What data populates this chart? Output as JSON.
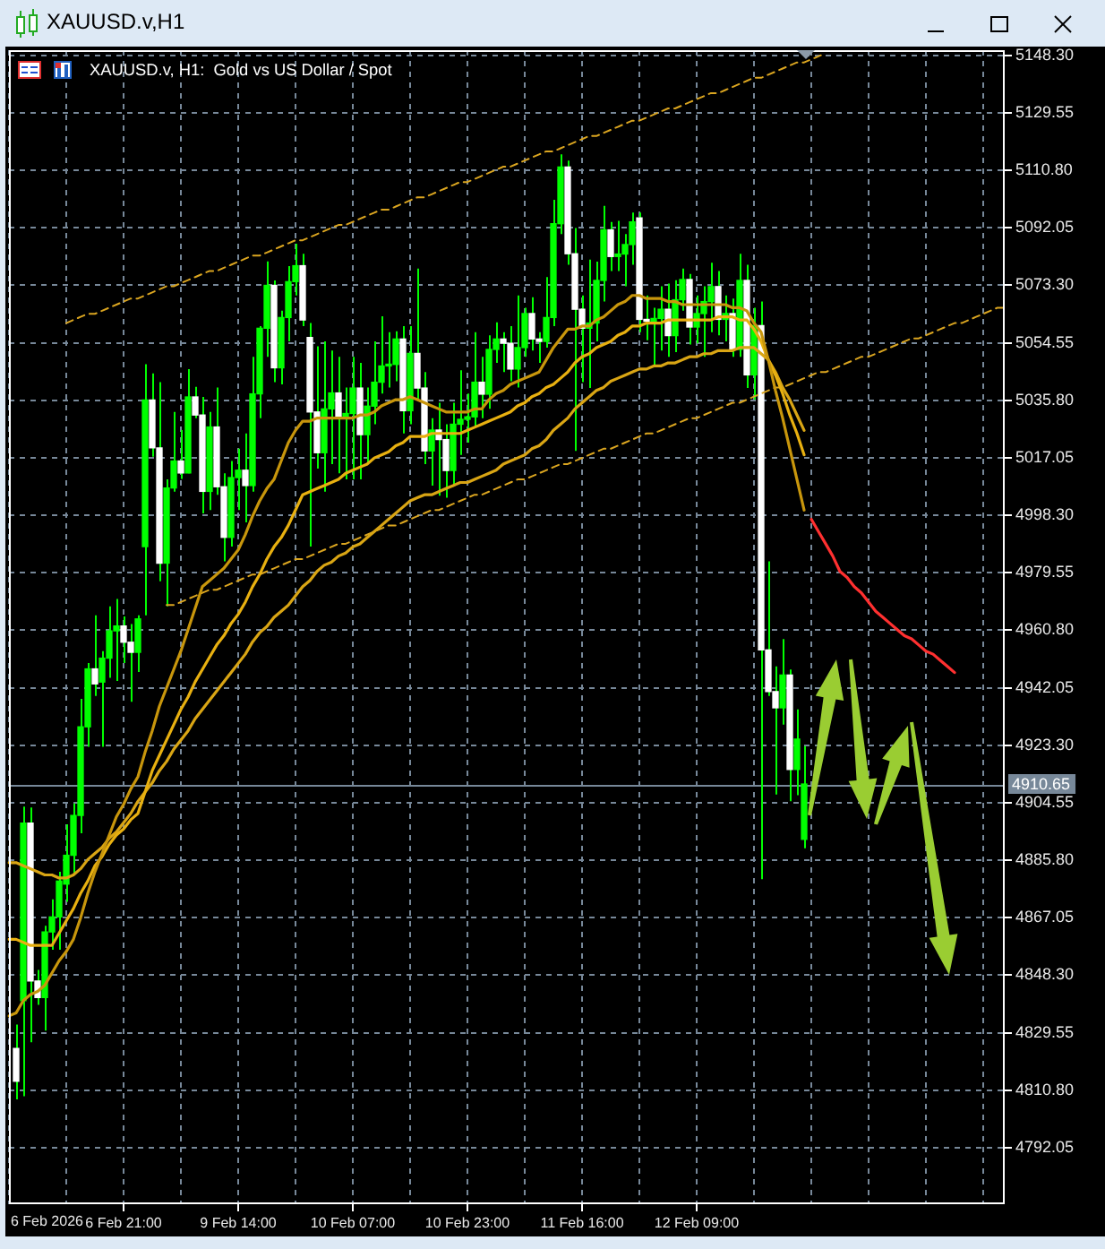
{
  "chart_data": {
    "type": "candlestick",
    "title": "XAUUSD.v,H1",
    "subtitle": "XAUUSD.v, H1:  Gold vs US Dollar / Spot",
    "annotations": [
      "6 Feb 2026"
    ],
    "categories": [
      null,
      null,
      null,
      null,
      null,
      null,
      null,
      null,
      null,
      null,
      null,
      null,
      null,
      null,
      null,
      null,
      "6 Feb 21:00",
      null,
      null,
      null,
      null,
      null,
      null,
      null,
      null,
      null,
      null,
      null,
      null,
      null,
      null,
      null,
      "9 Feb 14:00",
      null,
      null,
      null,
      null,
      null,
      null,
      null,
      null,
      null,
      null,
      null,
      null,
      null,
      null,
      null,
      "10 Feb 07:00",
      null,
      null,
      null,
      null,
      null,
      null,
      null,
      null,
      null,
      null,
      null,
      null,
      null,
      null,
      null,
      "10 Feb 23:00",
      null,
      null,
      null,
      null,
      null,
      null,
      null,
      null,
      null,
      null,
      null,
      null,
      null,
      null,
      null,
      "11 Feb 16:00",
      null,
      null,
      null,
      null,
      null,
      null,
      null,
      null,
      null,
      null,
      null,
      null,
      null,
      null,
      null,
      "12 Feb 09:00",
      null,
      null,
      null,
      null,
      null,
      null,
      null,
      null,
      null,
      null,
      null,
      null,
      null,
      null,
      null,
      null,
      null,
      null,
      null,
      null,
      null,
      null,
      null,
      null,
      null,
      null,
      null,
      null,
      null,
      null,
      null,
      null,
      null,
      null,
      null,
      null,
      null,
      null,
      null,
      null,
      null,
      null,
      null
    ],
    "ohlc": [
      null,
      [
        4824.4,
        4832.2,
        4807.8,
        4813.7
      ],
      [
        4840.0,
        4903.3,
        4808.8,
        4897.9
      ],
      [
        4897.9,
        4903.0,
        4826.4,
        4846.4
      ],
      [
        4846.4,
        4850.0,
        4838.6,
        4841.0
      ],
      [
        4841.0,
        4864.4,
        4830.2,
        4862.4
      ],
      [
        4862.4,
        4873.0,
        4856.6,
        4867.3
      ],
      [
        4867.3,
        4882.0,
        4856.6,
        4879.0
      ],
      [
        4878.0,
        4897.5,
        4872.2,
        4887.4
      ],
      [
        4887.4,
        4904.3,
        4880.9,
        4900.4
      ],
      [
        4900.4,
        4938.4,
        4894.6,
        4929.3
      ],
      [
        4929.3,
        4950.1,
        4922.8,
        4948.2
      ],
      [
        4948.2,
        4965.7,
        4939.4,
        4943.3
      ],
      [
        4943.9,
        4954.0,
        4922.8,
        4951.7
      ],
      [
        4951.7,
        4968.6,
        4945.3,
        4960.6
      ],
      [
        4960.6,
        4971.0,
        4944.3,
        4962.2
      ],
      [
        4962.2,
        4965.3,
        4950.1,
        4956.9
      ],
      [
        4956.9,
        4962.8,
        4937.5,
        4953.6
      ],
      [
        4953.6,
        4965.7,
        4947.2,
        4964.5
      ],
      [
        4988.1,
        5047.6,
        4965.7,
        5035.9
      ],
      [
        5035.9,
        5044.6,
        5017.4,
        5020.3
      ],
      [
        5020.3,
        5041.7,
        4976.8,
        4982.7
      ],
      [
        4982.7,
        5010.0,
        4968.6,
        5007.2
      ],
      [
        5007.2,
        5032.0,
        5006.0,
        5016.0
      ],
      [
        5016.0,
        5026.1,
        5010.2,
        5012.1
      ],
      [
        5012.1,
        5046.0,
        5012.0,
        5036.9
      ],
      [
        5036.9,
        5040.2,
        5030.0,
        5031.0
      ],
      [
        5031.0,
        5036.9,
        4998.9,
        5006.1
      ],
      [
        5006.1,
        5032.0,
        5000.0,
        5027.1
      ],
      [
        5027.1,
        5040.0,
        5005.0,
        5007.6
      ],
      [
        5007.6,
        5012.0,
        4983.3,
        4991.1
      ],
      [
        4991.1,
        5016.0,
        4988.1,
        5010.6
      ],
      [
        5010.6,
        5020.0,
        5000.0,
        5013.0
      ],
      [
        5013.0,
        5025.0,
        4996.0,
        5008.0
      ],
      [
        5008.0,
        5050.0,
        5006.0,
        5037.9
      ],
      [
        5037.9,
        5060.0,
        5030.0,
        5059.3
      ],
      [
        5059.3,
        5081.1,
        5050.0,
        5073.3
      ],
      [
        5073.3,
        5074.9,
        5041.7,
        5046.4
      ],
      [
        5046.4,
        5065.0,
        5041.0,
        5062.8
      ],
      [
        5062.8,
        5079.6,
        5055.0,
        5074.5
      ],
      [
        5074.5,
        5086.9,
        5070.0,
        5079.7
      ],
      [
        5079.7,
        5083.6,
        5060.0,
        5062.0
      ],
      [
        5056.3,
        5061.0,
        4988.1,
        5032.0
      ],
      [
        5032.0,
        5053.4,
        5013.5,
        5018.7
      ],
      [
        5018.7,
        5055.0,
        5006.0,
        5033.0
      ],
      [
        5033.0,
        5052.0,
        5015.0,
        5038.2
      ],
      [
        5038.2,
        5050.0,
        5012.0,
        5030.0
      ],
      [
        5030.0,
        5040.0,
        5010.0,
        5031.5
      ],
      [
        5031.5,
        5050.0,
        5010.0,
        5039.8
      ],
      [
        5039.8,
        5048.0,
        5010.0,
        5024.6
      ],
      [
        5024.6,
        5040.0,
        5015.0,
        5033.9
      ],
      [
        5033.9,
        5055.0,
        5028.0,
        5041.7
      ],
      [
        5041.7,
        5063.2,
        5038.0,
        5047.0
      ],
      [
        5047.0,
        5058.0,
        5040.0,
        5047.5
      ],
      [
        5047.5,
        5058.3,
        5042.0,
        5055.8
      ],
      [
        5055.8,
        5060.0,
        5025.0,
        5032.4
      ],
      [
        5032.4,
        5060.0,
        5028.0,
        5051.1
      ],
      [
        5051.1,
        5078.8,
        5036.0,
        5039.8
      ],
      [
        5039.8,
        5045.0,
        5015.0,
        5019.3
      ],
      [
        5019.3,
        5030.0,
        5008.0,
        5026.1
      ],
      [
        5026.1,
        5035.0,
        5004.7,
        5023.0
      ],
      [
        5023.0,
        5028.0,
        5004.0,
        5012.9
      ],
      [
        5012.9,
        5035.0,
        5008.0,
        5028.0
      ],
      [
        5028.0,
        5045.6,
        5018.0,
        5029.6
      ],
      [
        5029.6,
        5038.0,
        5022.0,
        5030.4
      ],
      [
        5030.4,
        5058.0,
        5027.0,
        5041.7
      ],
      [
        5041.7,
        5050.0,
        5030.0,
        5037.8
      ],
      [
        5037.8,
        5057.0,
        5033.0,
        5052.4
      ],
      [
        5052.4,
        5061.2,
        5048.0,
        5055.8
      ],
      [
        5055.8,
        5058.0,
        5045.0,
        5054.4
      ],
      [
        5054.4,
        5060.0,
        5042.0,
        5046.0
      ],
      [
        5046.0,
        5070.0,
        5040.0,
        5053.0
      ],
      [
        5053.0,
        5066.0,
        5050.0,
        5064.1
      ],
      [
        5064.1,
        5069.4,
        5052.0,
        5055.8
      ],
      [
        5055.8,
        5058.0,
        5048.0,
        5055.0
      ],
      [
        5055.0,
        5076.0,
        5053.0,
        5062.8
      ],
      [
        5062.8,
        5101.2,
        5060.0,
        5093.4
      ],
      [
        5093.4,
        5116.0,
        5090.0,
        5111.9
      ],
      [
        5111.9,
        5114.0,
        5080.0,
        5083.6
      ],
      [
        5083.6,
        5092.0,
        5019.3,
        5065.5
      ],
      [
        5065.5,
        5070.0,
        5041.7,
        5059.3
      ],
      [
        5059.3,
        5081.7,
        5039.8,
        5061.0
      ],
      [
        5061.0,
        5081.0,
        5055.0,
        5074.9
      ],
      [
        5074.9,
        5099.2,
        5068.0,
        5091.4
      ],
      [
        5091.4,
        5094.0,
        5078.0,
        5082.7
      ],
      [
        5082.7,
        5094.3,
        5078.0,
        5083.5
      ],
      [
        5083.5,
        5090.0,
        5073.0,
        5086.6
      ],
      [
        5086.6,
        5097.0,
        5080.0,
        5094.0
      ],
      [
        5095.3,
        5097.0,
        5058.0,
        5062.2
      ],
      [
        5062.2,
        5070.0,
        5055.4,
        5061.6
      ],
      [
        5061.6,
        5066.0,
        5046.6,
        5062.5
      ],
      [
        5062.5,
        5073.0,
        5052.0,
        5065.5
      ],
      [
        5065.5,
        5073.9,
        5050.0,
        5056.9
      ],
      [
        5056.9,
        5075.0,
        5051.5,
        5068.6
      ],
      [
        5068.6,
        5078.8,
        5065.0,
        5075.2
      ],
      [
        5075.2,
        5077.0,
        5054.0,
        5059.7
      ],
      [
        5059.7,
        5070.0,
        5054.4,
        5064.1
      ],
      [
        5064.1,
        5073.0,
        5050.0,
        5068.0
      ],
      [
        5068.0,
        5080.7,
        5058.0,
        5072.9
      ],
      [
        5072.9,
        5078.0,
        5057.0,
        5062.2
      ],
      [
        5062.2,
        5070.0,
        5055.0,
        5064.1
      ],
      [
        5064.1,
        5069.0,
        5050.0,
        5052.4
      ],
      [
        5052.4,
        5083.6,
        5050.0,
        5074.9
      ],
      [
        5074.9,
        5080.0,
        5039.8,
        5044.1
      ],
      [
        5044.1,
        5066.0,
        5036.0,
        5060.2
      ],
      [
        5060.2,
        5068.0,
        4879.6,
        4954.4
      ],
      [
        4954.4,
        4983.3,
        4939.4,
        4940.8
      ],
      [
        4940.8,
        4949.0,
        4907.2,
        4935.5
      ],
      [
        4935.5,
        4957.9,
        4930.0,
        4946.2
      ],
      [
        4946.2,
        4948.0,
        4905.0,
        4915.4
      ],
      [
        4915.4,
        4935.0,
        4907.0,
        4925.3
      ],
      [
        4892.6,
        4923.0,
        4889.7,
        4910.65
      ],
      null,
      null,
      null,
      null,
      null,
      null,
      null,
      null,
      null,
      null,
      null,
      null,
      null,
      null,
      null,
      null,
      null,
      null,
      null,
      null,
      null,
      null,
      null,
      null,
      null,
      null,
      null,
      null
    ],
    "color": "#00ff00",
    "colors": [
      null,
      "#ffffff",
      "#00ff00",
      "#ffffff",
      "#ffffff",
      "#00ff00",
      "#00ff00",
      "#00ff00",
      "#00ff00",
      "#00ff00",
      "#00ff00",
      "#00ff00",
      "#ffffff",
      "#00ff00",
      "#00ff00",
      "#00ff00",
      "#ffffff",
      "#ffffff",
      "#00ff00",
      "#00ff00",
      "#ffffff",
      "#ffffff",
      "#00ff00",
      "#00ff00",
      "#ffffff",
      "#00ff00",
      "#ffffff",
      "#ffffff",
      "#00ff00",
      "#ffffff",
      "#ffffff",
      "#00ff00",
      "#00ff00",
      "#ffffff",
      "#00ff00",
      "#00ff00",
      "#00ff00",
      "#ffffff",
      "#00ff00",
      "#00ff00",
      "#00ff00",
      "#ffffff",
      "#ffffff",
      "#ffffff",
      "#00ff00",
      "#00ff00",
      "#ffffff",
      "#00ff00",
      "#00ff00",
      "#ffffff",
      "#00ff00",
      "#00ff00",
      "#00ff00",
      "#00ff00",
      "#00ff00",
      "#ffffff",
      "#00ff00",
      "#ffffff",
      "#ffffff",
      "#00ff00",
      "#ffffff",
      "#ffffff",
      "#00ff00",
      "#00ff00",
      "#00ff00",
      "#00ff00",
      "#ffffff",
      "#00ff00",
      "#00ff00",
      "#ffffff",
      "#ffffff",
      "#00ff00",
      "#00ff00",
      "#ffffff",
      "#ffffff",
      "#00ff00",
      "#00ff00",
      "#00ff00",
      "#ffffff",
      "#ffffff",
      "#ffffff",
      "#00ff00",
      "#00ff00",
      "#00ff00",
      "#ffffff",
      "#00ff00",
      "#00ff00",
      "#00ff00",
      "#ffffff",
      "#ffffff",
      "#00ff00",
      "#00ff00",
      "#ffffff",
      "#00ff00",
      "#00ff00",
      "#ffffff",
      "#00ff00",
      "#00ff00",
      "#00ff00",
      "#ffffff",
      "#00ff00",
      "#ffffff",
      "#00ff00",
      "#ffffff",
      "#00ff00",
      "#ffffff",
      "#ffffff",
      "#ffffff",
      "#00ff00",
      "#ffffff",
      "#00ff00",
      "#00ff00",
      null,
      null,
      null,
      null,
      null,
      null,
      null,
      null,
      null,
      null,
      null,
      null,
      null,
      null,
      null,
      null,
      null,
      null,
      null,
      null,
      null,
      null,
      null,
      null,
      null,
      null,
      null,
      null
    ],
    "series": [
      {
        "type": "line",
        "color": "#c8960c",
        "values": [
          4835,
          4836,
          4840,
          4842,
          4843,
          4845,
          4849,
          4853,
          4856,
          4860,
          4867,
          4875,
          4882,
          4888,
          4894,
          4900,
          4904,
          4909,
          4913,
          4921,
          4928,
          4936,
          4942,
          4948,
          4954,
          4961,
          4968,
          4975,
          4977,
          4979,
          4981,
          4984,
          4987,
          4992,
          4998,
          5003,
          5007,
          5010,
          5016,
          5022,
          5026,
          5029,
          5029,
          5030,
          5030,
          5030,
          5030,
          5030,
          5030,
          5031,
          5031,
          5032,
          5034,
          5035,
          5036,
          5036,
          5037,
          5036,
          5035,
          5034,
          5033,
          5032,
          5032,
          5032,
          5032,
          5033,
          5033,
          5036,
          5038,
          5039,
          5041,
          5042,
          5043,
          5044,
          5045,
          5049,
          5053,
          5056,
          5059,
          5059,
          5060,
          5060,
          5062,
          5063,
          5065,
          5067,
          5068,
          5070,
          5070,
          5069,
          5069,
          5069,
          5068,
          5068,
          5067,
          5067,
          5067,
          5067,
          5067,
          5067,
          5067,
          5066,
          5066,
          5065,
          5061,
          5058,
          5049,
          5039,
          5030,
          5020,
          5010,
          5000,
          null,
          null,
          null,
          null,
          null,
          null,
          null,
          null,
          null,
          null,
          null,
          null,
          null,
          null,
          null,
          null,
          null,
          null,
          null,
          null,
          null,
          null,
          null,
          null,
          null,
          null,
          null,
          null
        ]
      },
      {
        "type": "line",
        "color": "#e8b010",
        "values": [
          4860,
          4860,
          4859,
          4858,
          4858,
          4858,
          4858,
          4862,
          4866,
          4870,
          4875,
          4879,
          4884,
          4887,
          4891,
          4894,
          4896,
          4899,
          4901,
          4908,
          4915,
          4920,
          4925,
          4930,
          4935,
          4939,
          4944,
          4948,
          4952,
          4956,
          4959,
          4963,
          4966,
          4970,
          4975,
          4979,
          4984,
          4988,
          4991,
          4995,
          5000,
          5005,
          5006,
          5007,
          5008,
          5009,
          5010,
          5012,
          5013,
          5014,
          5015,
          5017,
          5018,
          5019,
          5021,
          5022,
          5024,
          5024,
          5024,
          5025,
          5025,
          5025,
          5025,
          5025,
          5026,
          5027,
          5028,
          5029,
          5030,
          5031,
          5032,
          5034,
          5035,
          5037,
          5038,
          5040,
          5041,
          5043,
          5045,
          5048,
          5050,
          5051,
          5053,
          5054,
          5055,
          5057,
          5058,
          5060,
          5060,
          5061,
          5061,
          5061,
          5062,
          5062,
          5062,
          5062,
          5062,
          5062,
          5062,
          5063,
          5063,
          5063,
          5062,
          5062,
          5059,
          5055,
          5049,
          5044,
          5038,
          5031,
          5025,
          5018,
          null,
          null,
          null,
          null,
          null,
          null,
          null,
          null,
          null,
          null,
          null,
          null,
          null,
          null,
          null,
          null,
          null,
          null,
          null,
          null,
          null,
          null,
          null,
          null,
          null,
          null,
          null,
          null
        ]
      },
      {
        "type": "line",
        "color": "#d9a514",
        "values": [
          4885,
          4885,
          4884,
          4883,
          4882,
          4881,
          4881,
          4880,
          4880,
          4881,
          4883,
          4886,
          4888,
          4890,
          4893,
          4895,
          4898,
          4901,
          4905,
          4908,
          4911,
          4915,
          4918,
          4922,
          4925,
          4928,
          4932,
          4935,
          4938,
          4941,
          4944,
          4947,
          4950,
          4953,
          4957,
          4960,
          4962,
          4965,
          4967,
          4969,
          4972,
          4975,
          4977,
          4980,
          4982,
          4983,
          4985,
          4986,
          4988,
          4989,
          4991,
          4993,
          4995,
          4997,
          4999,
          5001,
          5003,
          5004,
          5005,
          5005,
          5006,
          5007,
          5008,
          5009,
          5009,
          5010,
          5011,
          5012,
          5013,
          5015,
          5016,
          5017,
          5018,
          5020,
          5021,
          5023,
          5026,
          5028,
          5030,
          5033,
          5035,
          5037,
          5039,
          5040,
          5042,
          5043,
          5044,
          5045,
          5046,
          5046,
          5047,
          5047,
          5048,
          5048,
          5049,
          5050,
          5050,
          5051,
          5051,
          5052,
          5052,
          5052,
          5053,
          5053,
          5053,
          5051,
          5049,
          5045,
          5040,
          5036,
          5031,
          5026,
          null,
          null,
          null,
          null,
          null,
          null,
          null,
          null,
          null,
          null,
          null,
          null,
          null,
          null,
          null,
          null,
          null,
          null,
          null,
          null,
          null,
          null,
          null,
          null,
          null,
          null,
          null,
          null
        ]
      },
      {
        "type": "line",
        "color": "#daa520",
        "line_style": "dashed",
        "values": [
          null,
          null,
          null,
          null,
          null,
          null,
          null,
          null,
          5061,
          5062,
          5063,
          5064,
          5064,
          5065,
          5066,
          5067,
          5068,
          5069,
          5069,
          5070,
          5071,
          5072,
          5073,
          5073,
          5074,
          5075,
          5076,
          5077,
          5078,
          5078,
          5079,
          5080,
          5081,
          5082,
          5083,
          5083,
          5084,
          5085,
          5086,
          5087,
          5088,
          5088,
          5089,
          5090,
          5091,
          5092,
          5093,
          5093,
          5094,
          5095,
          5096,
          5097,
          5098,
          5098,
          5099,
          5100,
          5101,
          5102,
          5102,
          5103,
          5104,
          5105,
          5106,
          5107,
          5107,
          5108,
          5109,
          5110,
          5111,
          5112,
          5112,
          5113,
          5114,
          5115,
          5116,
          5117,
          5117,
          5118,
          5119,
          5120,
          5121,
          5122,
          5122,
          5123,
          5124,
          5125,
          5126,
          5127,
          5127,
          5128,
          5129,
          5130,
          5131,
          5131,
          5132,
          5133,
          5134,
          5135,
          5136,
          5136,
          5137,
          5138,
          5139,
          5140,
          5141,
          5141,
          5142,
          5143,
          5144,
          5145,
          5146,
          5146,
          5147,
          5148,
          5149,
          null,
          null,
          null,
          null,
          null,
          null,
          null,
          null,
          null,
          null,
          null,
          null,
          null,
          null,
          null,
          null,
          null,
          null,
          null,
          null,
          null,
          null,
          null,
          null,
          null
        ]
      },
      {
        "type": "line",
        "color": "#daa520",
        "line_style": "dashed",
        "values": [
          null,
          null,
          null,
          null,
          null,
          null,
          null,
          null,
          null,
          null,
          null,
          null,
          null,
          null,
          null,
          null,
          null,
          null,
          null,
          null,
          null,
          null,
          4969,
          4969,
          4970,
          4971,
          4972,
          4973,
          4974,
          4974,
          4975,
          4976,
          4977,
          4978,
          4979,
          4979,
          4980,
          4981,
          4982,
          4983,
          4984,
          4984,
          4985,
          4986,
          4987,
          4988,
          4989,
          4989,
          4990,
          4991,
          4992,
          4993,
          4994,
          4995,
          4995,
          4996,
          4997,
          4998,
          4999,
          5000,
          5000,
          5001,
          5002,
          5003,
          5004,
          5005,
          5005,
          5006,
          5007,
          5008,
          5009,
          5010,
          5010,
          5011,
          5012,
          5013,
          5014,
          5015,
          5015,
          5016,
          5017,
          5018,
          5019,
          5020,
          5020,
          5021,
          5022,
          5023,
          5024,
          5025,
          5025,
          5026,
          5027,
          5028,
          5029,
          5030,
          5030,
          5031,
          5032,
          5033,
          5034,
          5035,
          5035,
          5036,
          5037,
          5038,
          5039,
          5040,
          5040,
          5041,
          5042,
          5043,
          5044,
          5045,
          5045,
          5046,
          5047,
          5048,
          5049,
          5050,
          5050,
          5051,
          5052,
          5053,
          5054,
          5055,
          5056,
          5056,
          5057,
          5058,
          5059,
          5060,
          5061,
          5061,
          5062,
          5063,
          5064,
          5065,
          5066,
          5066
        ]
      },
      {
        "type": "line",
        "color": "#ff3030",
        "values": [
          null,
          null,
          null,
          null,
          null,
          null,
          null,
          null,
          null,
          null,
          null,
          null,
          null,
          null,
          null,
          null,
          null,
          null,
          null,
          null,
          null,
          null,
          null,
          null,
          null,
          null,
          null,
          null,
          null,
          null,
          null,
          null,
          null,
          null,
          null,
          null,
          null,
          null,
          null,
          null,
          null,
          null,
          null,
          null,
          null,
          null,
          null,
          null,
          null,
          null,
          null,
          null,
          null,
          null,
          null,
          null,
          null,
          null,
          null,
          null,
          null,
          null,
          null,
          null,
          null,
          null,
          null,
          null,
          null,
          null,
          null,
          null,
          null,
          null,
          null,
          null,
          null,
          null,
          null,
          null,
          null,
          null,
          null,
          null,
          null,
          null,
          null,
          null,
          null,
          null,
          null,
          null,
          null,
          null,
          null,
          null,
          null,
          null,
          null,
          null,
          null,
          null,
          null,
          null,
          null,
          null,
          null,
          null,
          null,
          null,
          null,
          null,
          4997,
          4993,
          4989,
          4985,
          4980,
          4978,
          4975,
          4973,
          4970,
          4967,
          4965,
          4963,
          4961,
          4959,
          4958,
          4956,
          4954,
          4953,
          4951,
          4949,
          4947,
          null,
          null,
          null,
          null,
          null,
          null,
          null
        ]
      }
    ],
    "ylim": [
      4773.6,
      5150.0
    ],
    "yticks": [
      {
        "value": 4792.05,
        "label": "4792.05"
      },
      {
        "value": 4810.8,
        "label": "4810.80"
      },
      {
        "value": 4829.55,
        "label": "4829.55"
      },
      {
        "value": 4848.3,
        "label": "4848.30"
      },
      {
        "value": 4867.05,
        "label": "4867.05"
      },
      {
        "value": 4885.8,
        "label": "4885.80"
      },
      {
        "value": 4904.55,
        "label": "4904.55"
      },
      {
        "value": 4923.3,
        "label": "4923.30"
      },
      {
        "value": 4942.05,
        "label": "4942.05"
      },
      {
        "value": 4960.8,
        "label": "4960.80"
      },
      {
        "value": 4979.55,
        "label": "4979.55"
      },
      {
        "value": 4998.3,
        "label": "4998.30"
      },
      {
        "value": 5017.05,
        "label": "5017.05"
      },
      {
        "value": 5035.8,
        "label": "5035.80"
      },
      {
        "value": 5054.55,
        "label": "5054.55"
      },
      {
        "value": 5073.3,
        "label": "5073.30"
      },
      {
        "value": 5092.05,
        "label": "5092.05"
      },
      {
        "value": 5110.8,
        "label": "5110.80"
      },
      {
        "value": 5129.55,
        "label": "5129.55"
      },
      {
        "value": 5148.3,
        "label": "5148.30"
      }
    ],
    "grid": true,
    "ref_lines": [
      {
        "axis": "y",
        "value": 4910.65,
        "label": "4910.65",
        "color": "#778899"
      }
    ]
  }
}
